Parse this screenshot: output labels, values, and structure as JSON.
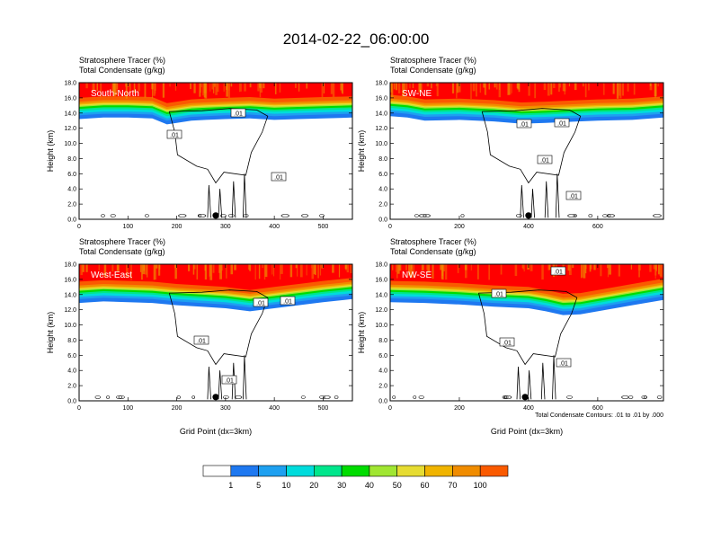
{
  "title": "2014-02-22_06:00:00",
  "colors": {
    "levels": [
      "#ffffff",
      "#1e78f0",
      "#1ea0f0",
      "#00dcdc",
      "#00e68c",
      "#00dc00",
      "#a0e632",
      "#e6dc32",
      "#f0b400",
      "#f08c00",
      "#fa5a00",
      "#ff0000"
    ],
    "contour": "#000000"
  },
  "chart_data": [
    {
      "type": "heatmap",
      "panel_label": "South-North",
      "header_line1": "Stratosphere Tracer   (%)",
      "header_line2": "Total Condensate   (g/kg)",
      "ylabel": "Height (km)",
      "xlabel": "",
      "xlim": [
        0,
        560
      ],
      "ylim": [
        0,
        18
      ],
      "xticks": [
        "0",
        "100",
        "200",
        "300",
        "400",
        "500"
      ],
      "yticks": [
        "0.0",
        "2.0",
        "4.0",
        "6.0",
        "8.0",
        "10.0",
        "12.0",
        "14.0",
        "16.0",
        "18.0"
      ],
      "marker_x": 280,
      "contour_labels": [
        ".01",
        ".01",
        ".01"
      ],
      "tropopause": [
        [
          0,
          14.8
        ],
        [
          50,
          15.0
        ],
        [
          100,
          15.0
        ],
        [
          150,
          14.9
        ],
        [
          180,
          14.1
        ],
        [
          200,
          14.3
        ],
        [
          230,
          14.6
        ],
        [
          260,
          14.7
        ],
        [
          300,
          14.8
        ],
        [
          350,
          14.9
        ],
        [
          400,
          14.7
        ],
        [
          450,
          14.8
        ],
        [
          500,
          14.9
        ],
        [
          560,
          15.0
        ]
      ]
    },
    {
      "type": "heatmap",
      "panel_label": "SW-NE",
      "header_line1": "Stratosphere Tracer   (%)",
      "header_line2": "Total Condensate   (g/kg)",
      "ylabel": "Height (km)",
      "xlabel": "",
      "xlim": [
        0,
        790
      ],
      "ylim": [
        0,
        18
      ],
      "xticks": [
        "0",
        "200",
        "400",
        "600"
      ],
      "yticks": [
        "0.0",
        "2.0",
        "4.0",
        "6.0",
        "8.0",
        "10.0",
        "12.0",
        "14.0",
        "16.0",
        "18.0"
      ],
      "marker_x": 400,
      "contour_labels": [
        ".01",
        ".01",
        ".01",
        ".01"
      ],
      "tropopause": [
        [
          0,
          15.2
        ],
        [
          50,
          15.0
        ],
        [
          100,
          14.6
        ],
        [
          200,
          14.7
        ],
        [
          300,
          14.5
        ],
        [
          380,
          14.2
        ],
        [
          450,
          14.3
        ],
        [
          500,
          14.4
        ],
        [
          600,
          14.6
        ],
        [
          700,
          14.7
        ],
        [
          790,
          15.0
        ]
      ]
    },
    {
      "type": "heatmap",
      "panel_label": "West-East",
      "header_line1": "Stratosphere Tracer   (%)",
      "header_line2": "Total Condensate   (g/kg)",
      "ylabel": "Height (km)",
      "xlabel": "Grid Point (dx=3km)",
      "xlim": [
        0,
        560
      ],
      "ylim": [
        0,
        18
      ],
      "xticks": [
        "0",
        "100",
        "200",
        "300",
        "400",
        "500"
      ],
      "yticks": [
        "0.0",
        "2.0",
        "4.0",
        "6.0",
        "8.0",
        "10.0",
        "12.0",
        "14.0",
        "16.0",
        "18.0"
      ],
      "marker_x": 280,
      "contour_labels": [
        ".01",
        ".01",
        ".01",
        ".01"
      ],
      "tropopause": [
        [
          0,
          14.5
        ],
        [
          50,
          14.7
        ],
        [
          100,
          14.6
        ],
        [
          150,
          14.5
        ],
        [
          200,
          14.2
        ],
        [
          250,
          14.0
        ],
        [
          300,
          13.8
        ],
        [
          350,
          13.4
        ],
        [
          400,
          13.8
        ],
        [
          450,
          14.2
        ],
        [
          500,
          14.6
        ],
        [
          560,
          15.0
        ]
      ]
    },
    {
      "type": "heatmap",
      "panel_label": "NW-SE",
      "header_line1": "Stratosphere Tracer   (%)",
      "header_line2": "Total Condensate   (g/kg)",
      "ylabel": "Height (km)",
      "xlabel": "Grid Point (dx=3km)",
      "xlim": [
        0,
        790
      ],
      "ylim": [
        0,
        18
      ],
      "xticks": [
        "0",
        "200",
        "400",
        "600"
      ],
      "yticks": [
        "0.0",
        "2.0",
        "4.0",
        "6.0",
        "8.0",
        "10.0",
        "12.0",
        "14.0",
        "16.0",
        "18.0"
      ],
      "marker_x": 390,
      "contour_labels": [
        ".01",
        ".01",
        ".01",
        ".01"
      ],
      "footnote": "Total Condensate Contours: .01 to .01 by .000",
      "tropopause": [
        [
          0,
          14.6
        ],
        [
          100,
          14.5
        ],
        [
          200,
          14.3
        ],
        [
          300,
          14.0
        ],
        [
          400,
          13.8
        ],
        [
          450,
          13.4
        ],
        [
          500,
          12.9
        ],
        [
          550,
          13.0
        ],
        [
          600,
          13.4
        ],
        [
          700,
          14.2
        ],
        [
          790,
          14.9
        ]
      ]
    }
  ],
  "colorbar": {
    "labels": [
      "1",
      "5",
      "10",
      "20",
      "30",
      "40",
      "50",
      "60",
      "70",
      "100"
    ]
  }
}
